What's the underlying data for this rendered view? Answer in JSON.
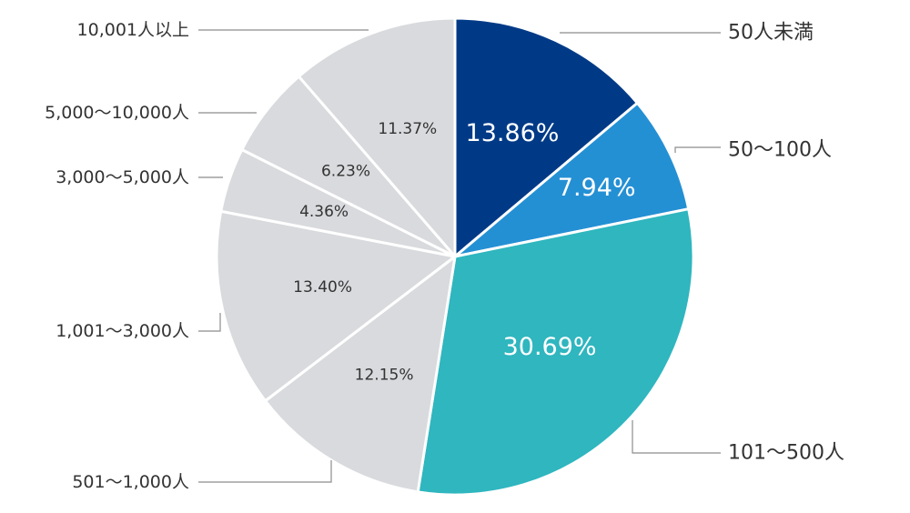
{
  "chart_data": {
    "type": "pie",
    "title": "",
    "start": "12 o'clock",
    "direction": "clockwise",
    "slices": [
      {
        "label": "50人未満",
        "value": 13.86,
        "display": "13.86%",
        "color": "#003a87"
      },
      {
        "label": "50〜100人",
        "value": 7.94,
        "display": "7.94%",
        "color": "#2490d4"
      },
      {
        "label": "101〜500人",
        "value": 30.69,
        "display": "30.69%",
        "color": "#2fb6bf"
      },
      {
        "label": "501〜1,000人",
        "value": 12.15,
        "display": "12.15%",
        "color": "#d8dadd"
      },
      {
        "label": "1,001〜3,000人",
        "value": 13.4,
        "display": "13.40%",
        "color": "#d8dadd"
      },
      {
        "label": "3,000〜5,000人",
        "value": 4.36,
        "display": "4.36%",
        "color": "#d8dadd"
      },
      {
        "label": "5,000〜10,000人",
        "value": 6.23,
        "display": "6.23%",
        "color": "#d8dadd"
      },
      {
        "label": "10,001人以上",
        "value": 11.37,
        "display": "11.37%",
        "color": "#d8dadd"
      }
    ]
  }
}
